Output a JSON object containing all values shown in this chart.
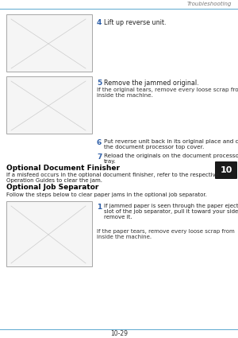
{
  "bg_color": "#ffffff",
  "header_text": "Troubleshooting",
  "header_line_color": "#6ab0d4",
  "footer_text": "10-29",
  "footer_line_color": "#6ab0d4",
  "chapter_tab": "10",
  "chapter_tab_bg": "#1a1a1a",
  "chapter_tab_text_color": "#ffffff",
  "step4_num": "4",
  "step4_text": "Lift up reverse unit.",
  "step5_num": "5",
  "step5_text": "Remove the jammed original.",
  "step5_subtext": "If the original tears, remove every loose scrap from\ninside the machine.",
  "step6_num": "6",
  "step6_text": "Put reverse unit back in its original place and close\nthe document processor top cover.",
  "step7_num": "7",
  "step7_text": "Reload the originals on the document processor\ntray.",
  "section1_title": "Optional Document Finisher",
  "section1_body": "If a misfeed occurs in the optional document finisher, refer to the respective Operation Guides to clear the jam.",
  "section2_title": "Optional Job Separator",
  "section2_body": "Follow the steps below to clear paper jams in the optional job separator.",
  "step1_num": "1",
  "step1_text": "If jammed paper is seen through the paper ejection\nslot of the job separator, pull it toward your side to\nremove it.",
  "step1_subtext": "If the paper tears, remove every loose scrap from\ninside the machine.",
  "text_color": "#222222",
  "step_num_color": "#3060a8",
  "bold_color": "#000000",
  "subtext_color": "#333333"
}
